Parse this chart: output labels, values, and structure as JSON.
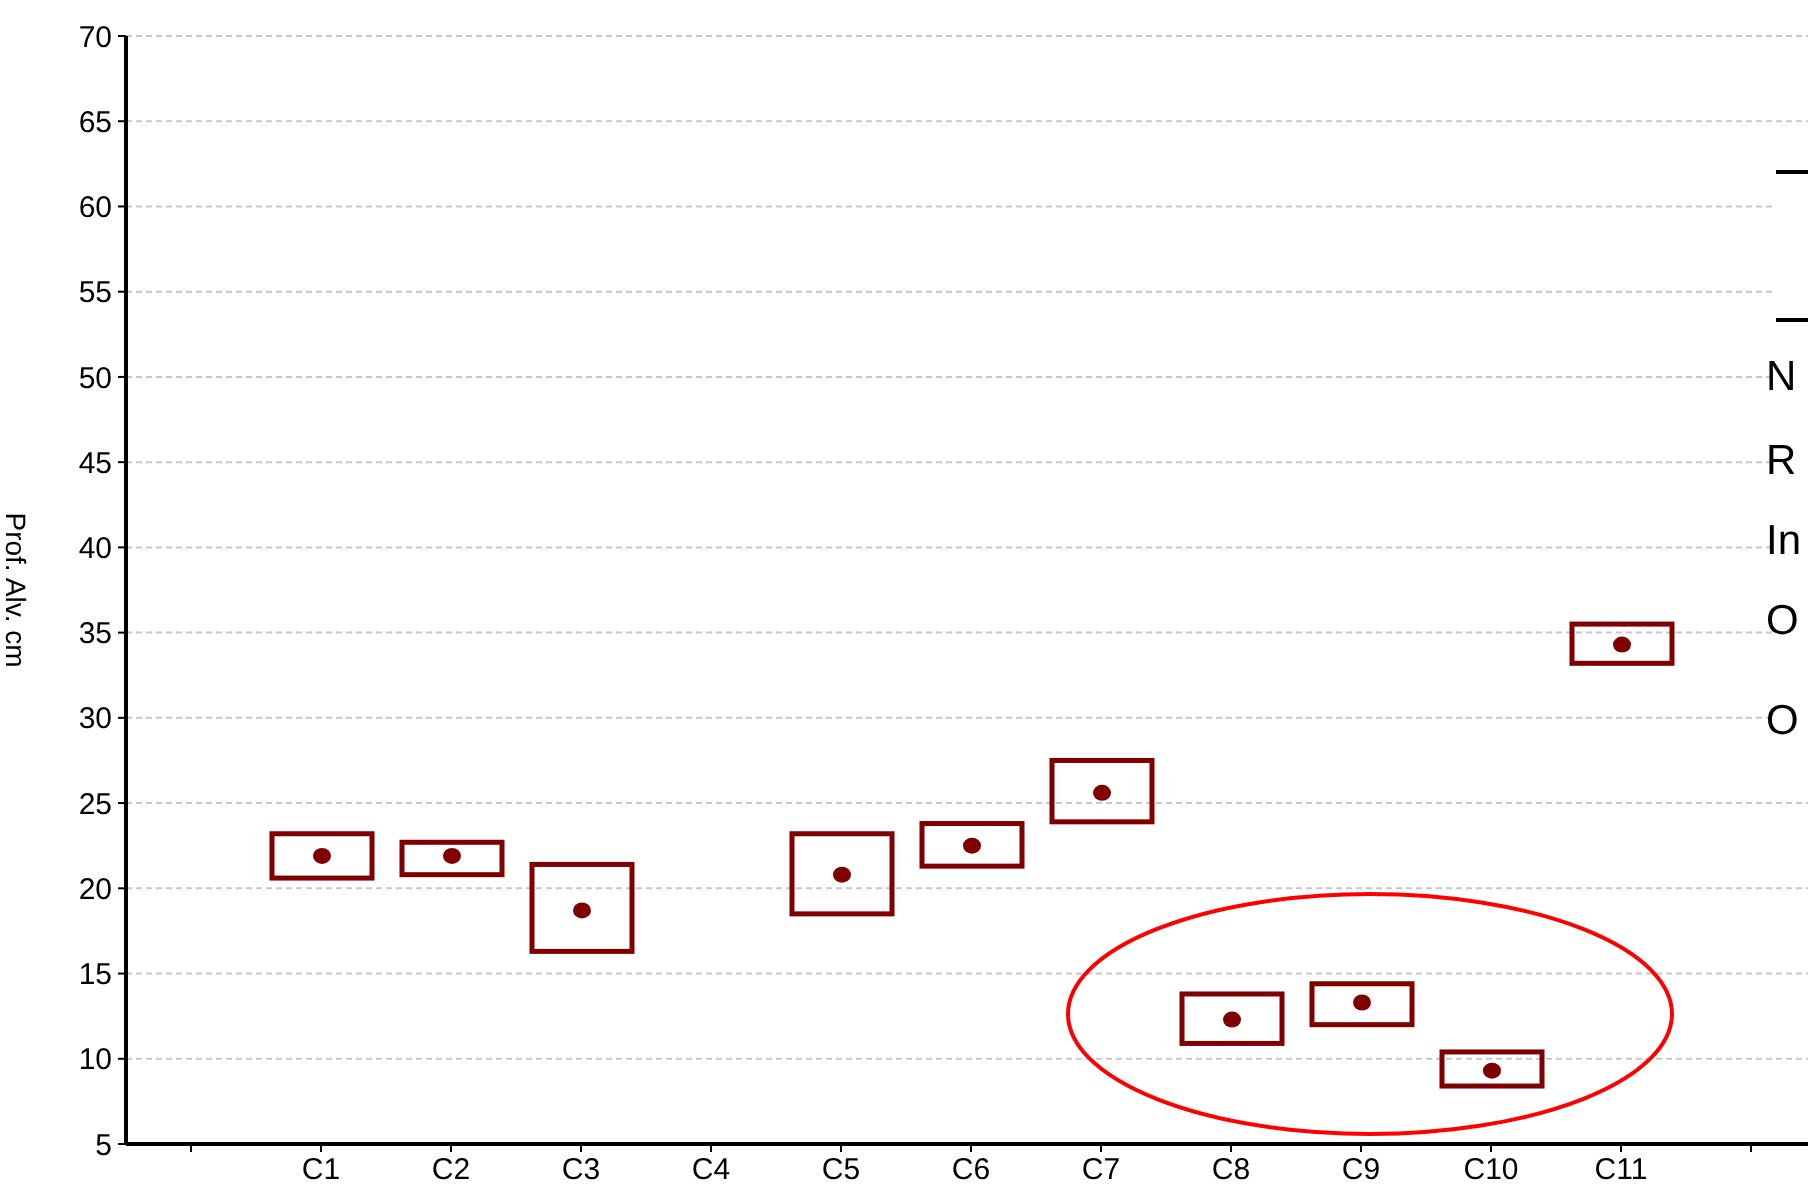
{
  "chart_data": {
    "type": "box",
    "ylabel": "Prof. Alv. cm",
    "categories": [
      null,
      "C1",
      "C2",
      "C3",
      "C4",
      "C5",
      "C6",
      "C7",
      "C8",
      "C9",
      "C10",
      "C11",
      null
    ],
    "boxes": [
      null,
      {
        "low": 20.6,
        "q1": 20.6,
        "median": 21.9,
        "q3": 23.2,
        "high": 23.2
      },
      {
        "low": 20.8,
        "q1": 20.8,
        "median": 21.9,
        "q3": 22.7,
        "high": 22.7
      },
      {
        "low": 16.3,
        "q1": 16.3,
        "median": 18.7,
        "q3": 21.4,
        "high": 21.4
      },
      null,
      {
        "low": 18.5,
        "q1": 18.5,
        "median": 20.8,
        "q3": 23.2,
        "high": 23.2
      },
      {
        "low": 21.3,
        "q1": 21.3,
        "median": 22.5,
        "q3": 23.8,
        "high": 23.8
      },
      {
        "low": 23.9,
        "q1": 23.9,
        "median": 25.6,
        "q3": 27.5,
        "high": 27.5
      },
      {
        "low": 10.9,
        "q1": 10.9,
        "median": 12.3,
        "q3": 13.8,
        "high": 13.8
      },
      {
        "low": 12.0,
        "q1": 12.0,
        "median": 13.3,
        "q3": 14.4,
        "high": 14.4
      },
      {
        "low": 8.4,
        "q1": 8.4,
        "median": 9.3,
        "q3": 10.4,
        "high": 10.4
      },
      {
        "low": 33.2,
        "q1": 33.2,
        "median": 34.3,
        "q3": 35.5,
        "high": 35.5
      },
      null
    ],
    "color": "#800000",
    "ylim": [
      5,
      70
    ],
    "yticks": [
      5,
      10,
      15,
      20,
      25,
      30,
      35,
      40,
      45,
      50,
      55,
      60,
      65,
      70
    ],
    "grid": "y",
    "annotations": [
      "N",
      "R",
      "In",
      "O",
      "O"
    ]
  }
}
